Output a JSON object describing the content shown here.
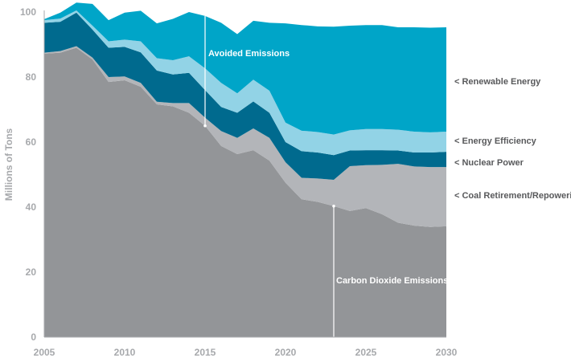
{
  "chart_data": {
    "type": "area",
    "stacked": true,
    "ylabel": "Millions of Tons",
    "xlabel": "",
    "xlim": [
      2005,
      2030
    ],
    "ylim": [
      0,
      100
    ],
    "x_ticks": [
      2005,
      2010,
      2015,
      2020,
      2025,
      2030
    ],
    "y_ticks": [
      0,
      20,
      40,
      60,
      80,
      100
    ],
    "grid": false,
    "x": [
      2005,
      2006,
      2007,
      2008,
      2009,
      2010,
      2011,
      2012,
      2013,
      2014,
      2015,
      2016,
      2017,
      2018,
      2019,
      2020,
      2021,
      2022,
      2023,
      2024,
      2025,
      2026,
      2027,
      2028,
      2029,
      2030
    ],
    "series": [
      {
        "name": "Carbon Dioxide Emissions",
        "label": "Carbon Dioxide Emissions",
        "color": "#939598",
        "values": [
          87.2,
          87.5,
          89,
          85.4,
          78.5,
          79,
          77,
          71.6,
          71,
          69,
          65,
          58.8,
          56.3,
          57.5,
          54.3,
          47.5,
          42.4,
          41.6,
          40.3,
          38.8,
          39.7,
          37.8,
          35.2,
          34.3,
          33.9,
          34.1
        ]
      },
      {
        "name": "Coal Retirement/Repowering",
        "label": "< Coal Retirement/Repowering",
        "color": "#b3b5b9",
        "values": [
          0.3,
          0.5,
          0.5,
          0.6,
          1.5,
          1.2,
          1.2,
          0.8,
          1,
          3,
          2.5,
          4.6,
          5,
          6.7,
          7,
          6.3,
          6.6,
          7.2,
          8.1,
          13.8,
          13.2,
          15.2,
          18.1,
          18.2,
          18.4,
          18.2
        ]
      },
      {
        "name": "Nuclear Power",
        "label": "< Nuclear Power",
        "color": "#006a8e",
        "values": [
          9.2,
          9,
          10.3,
          8.6,
          9,
          9.1,
          9.4,
          9.6,
          8.8,
          9.3,
          8.5,
          7.4,
          7.7,
          8.3,
          7.7,
          6.2,
          8.2,
          8,
          7.6,
          4.8,
          4.6,
          4.5,
          4.1,
          4.3,
          4.5,
          4.7
        ]
      },
      {
        "name": "Energy Efficiency",
        "label": "< Energy Efficiency",
        "color": "#92d3e6",
        "values": [
          0.8,
          1,
          0.7,
          1.2,
          2,
          2.2,
          3.4,
          3.8,
          4.4,
          5.1,
          6.7,
          7.4,
          6,
          6.7,
          6.8,
          6,
          6.3,
          6.3,
          6.3,
          6.2,
          6.5,
          6.5,
          6.4,
          6.4,
          6.2,
          6.2
        ]
      },
      {
        "name": "Renewable Energy",
        "label": "< Renewable Energy",
        "color": "#00a5c8",
        "values": [
          0.3,
          1.8,
          2.4,
          6.7,
          6.5,
          8.3,
          9.4,
          10.7,
          12.7,
          13.6,
          16.1,
          18.5,
          18.2,
          18.1,
          20.9,
          30.5,
          32.5,
          32.5,
          33.2,
          32.2,
          32,
          32,
          31.5,
          32.1,
          32.2,
          32.1
        ]
      }
    ],
    "annotations": [
      {
        "text": "Avoided Emissions",
        "x": 2015
      },
      {
        "text": "Carbon Dioxide Emissions",
        "x": 2023
      }
    ]
  }
}
